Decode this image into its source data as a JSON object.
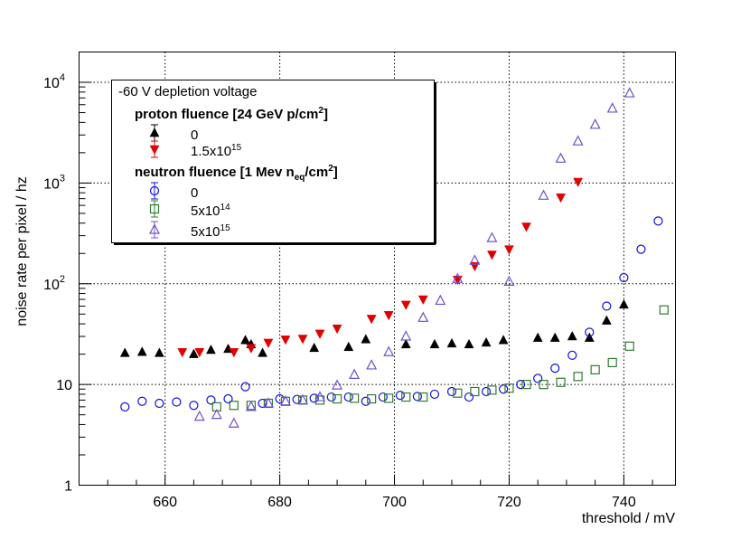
{
  "chart_data": {
    "type": "scatter",
    "title": "",
    "xlabel": "threshold / mV",
    "ylabel": "noise rate per pixel / hz",
    "xlim": [
      645,
      749
    ],
    "ylim": [
      1,
      20000
    ],
    "yscale": "log",
    "grid": true,
    "x_ticks": [
      660,
      680,
      700,
      720,
      740
    ],
    "x_tick_labels": [
      "660",
      "680",
      "700",
      "720",
      "740"
    ],
    "y_ticks": [
      1,
      10,
      100,
      1000,
      10000
    ],
    "y_tick_labels": [
      {
        "base": "1",
        "exp": ""
      },
      {
        "base": "10",
        "exp": ""
      },
      {
        "base": "10",
        "exp": "2"
      },
      {
        "base": "10",
        "exp": "3"
      },
      {
        "base": "10",
        "exp": "4"
      }
    ],
    "legend": {
      "placement": "top-left",
      "header": "-60 V depletion voltage",
      "groups": [
        {
          "title": "proton fluence [24 GeV p/cm",
          "title_sup": "2",
          "title_end": "]",
          "entries": [
            {
              "label": "0",
              "label_sup": "",
              "series": 0
            },
            {
              "label": "1.5x10",
              "label_sup": "15",
              "series": 1
            }
          ]
        },
        {
          "title": "neutron fluence [1 Mev n",
          "title_sub": "eq",
          "title_mid": "/cm",
          "title_sup": "2",
          "title_end": "]",
          "entries": [
            {
              "label": "0",
              "label_sup": "",
              "series": 2
            },
            {
              "label": "5x10",
              "label_sup": "14",
              "series": 3
            },
            {
              "label": "5x10",
              "label_sup": "15",
              "series": 4
            }
          ]
        }
      ]
    },
    "series": [
      {
        "name": "proton fluence 0",
        "marker": "triangle-up-filled",
        "color": "#000000",
        "points": [
          [
            653,
            20.5
          ],
          [
            656,
            21
          ],
          [
            659,
            20.5
          ],
          [
            665,
            20
          ],
          [
            668,
            22
          ],
          [
            671,
            22.5
          ],
          [
            674,
            27.5
          ],
          [
            675,
            25
          ],
          [
            677,
            20.5
          ],
          [
            686,
            23
          ],
          [
            692,
            23.5
          ],
          [
            695,
            28
          ],
          [
            702,
            25
          ],
          [
            707,
            25
          ],
          [
            710,
            25.5
          ],
          [
            713,
            25
          ],
          [
            716,
            26
          ],
          [
            719,
            27.5
          ],
          [
            725,
            29
          ],
          [
            728,
            29
          ],
          [
            731,
            30
          ],
          [
            734,
            29
          ],
          [
            737,
            43
          ],
          [
            740,
            62
          ]
        ]
      },
      {
        "name": "proton fluence 1.5x10^15",
        "marker": "triangle-down-filled",
        "color": "#e00000",
        "points": [
          [
            663,
            21
          ],
          [
            666,
            21
          ],
          [
            672,
            21
          ],
          [
            675,
            23
          ],
          [
            678,
            26
          ],
          [
            681,
            28
          ],
          [
            684,
            28.5
          ],
          [
            687,
            32
          ],
          [
            690,
            36
          ],
          [
            696,
            45
          ],
          [
            699,
            49
          ],
          [
            702,
            62
          ],
          [
            705,
            70
          ],
          [
            711,
            110
          ],
          [
            714,
            150
          ],
          [
            717,
            195
          ],
          [
            720,
            220
          ],
          [
            723,
            370
          ],
          [
            729,
            720
          ],
          [
            732,
            1030
          ]
        ]
      },
      {
        "name": "neutron fluence 0",
        "marker": "circle-open",
        "color": "#1010e0",
        "points": [
          [
            653,
            6
          ],
          [
            656,
            6.8
          ],
          [
            659,
            6.5
          ],
          [
            662,
            6.7
          ],
          [
            665,
            6.2
          ],
          [
            668,
            7
          ],
          [
            671,
            7.2
          ],
          [
            674,
            9.5
          ],
          [
            677,
            6.5
          ],
          [
            680,
            7.2
          ],
          [
            683,
            7.1
          ],
          [
            686,
            7.3
          ],
          [
            689,
            7.5
          ],
          [
            692,
            7.5
          ],
          [
            695,
            6.8
          ],
          [
            698,
            7.5
          ],
          [
            701,
            7.8
          ],
          [
            704,
            7.6
          ],
          [
            707,
            8
          ],
          [
            710,
            8.5
          ],
          [
            713,
            7.5
          ],
          [
            716,
            8.5
          ],
          [
            719,
            9
          ],
          [
            722,
            10
          ],
          [
            725,
            11.5
          ],
          [
            728,
            14.5
          ],
          [
            731,
            19.5
          ],
          [
            734,
            33
          ],
          [
            737,
            60
          ],
          [
            740,
            115
          ],
          [
            743,
            220
          ],
          [
            746,
            420
          ]
        ]
      },
      {
        "name": "neutron fluence 5x10^14",
        "marker": "square-open",
        "color": "#2e7d32",
        "points": [
          [
            669,
            6
          ],
          [
            672,
            6.2
          ],
          [
            675,
            6.2
          ],
          [
            678,
            6.5
          ],
          [
            681,
            6.8
          ],
          [
            684,
            7
          ],
          [
            687,
            7
          ],
          [
            690,
            7.2
          ],
          [
            693,
            7.3
          ],
          [
            696,
            7.2
          ],
          [
            699,
            7.3
          ],
          [
            702,
            7.5
          ],
          [
            705,
            7.5
          ],
          [
            711,
            8.2
          ],
          [
            714,
            8.5
          ],
          [
            717,
            8.8
          ],
          [
            720,
            9.2
          ],
          [
            723,
            10
          ],
          [
            726,
            10
          ],
          [
            729,
            10.5
          ],
          [
            732,
            12
          ],
          [
            735,
            14
          ],
          [
            738,
            16.5
          ],
          [
            741,
            24
          ],
          [
            747,
            55
          ]
        ]
      },
      {
        "name": "neutron fluence 5x10^15",
        "marker": "triangle-up-open",
        "color": "#7050d0",
        "points": [
          [
            666,
            4.8
          ],
          [
            669,
            5
          ],
          [
            672,
            4.1
          ],
          [
            675,
            6
          ],
          [
            678,
            6.5
          ],
          [
            681,
            6.8
          ],
          [
            684,
            7
          ],
          [
            687,
            7.5
          ],
          [
            690,
            9.8
          ],
          [
            693,
            12.5
          ],
          [
            696,
            15.5
          ],
          [
            699,
            21
          ],
          [
            702,
            30
          ],
          [
            705,
            46
          ],
          [
            708,
            68
          ],
          [
            711,
            112
          ],
          [
            714,
            170
          ],
          [
            717,
            285
          ],
          [
            720,
            105
          ],
          [
            726,
            750
          ],
          [
            729,
            1750
          ],
          [
            732,
            2600
          ],
          [
            735,
            3800
          ],
          [
            738,
            5500
          ],
          [
            741,
            7800
          ]
        ]
      }
    ]
  }
}
